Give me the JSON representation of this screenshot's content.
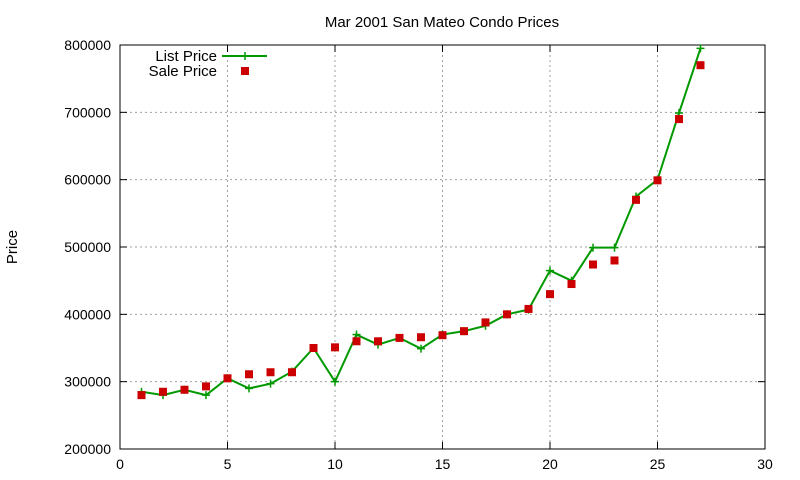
{
  "chart_data": {
    "type": "line",
    "title": "Mar 2001 San Mateo Condo Prices",
    "xlabel": "",
    "ylabel": "Price",
    "xlim": [
      0,
      30
    ],
    "ylim": [
      200000,
      800000
    ],
    "xticks": [
      0,
      5,
      10,
      15,
      20,
      25,
      30
    ],
    "yticks": [
      200000,
      300000,
      400000,
      500000,
      600000,
      700000,
      800000
    ],
    "grid": true,
    "legend_position": "top-left",
    "series": [
      {
        "name": "List Price",
        "style": "line-plus",
        "color": "#009900",
        "x": [
          1,
          2,
          3,
          4,
          5,
          6,
          7,
          8,
          9,
          10,
          11,
          12,
          13,
          14,
          15,
          16,
          17,
          18,
          19,
          20,
          21,
          22,
          23,
          24,
          25,
          26,
          27
        ],
        "y": [
          285000,
          280000,
          288000,
          280000,
          305000,
          290000,
          297000,
          315000,
          350000,
          300000,
          370000,
          355000,
          365000,
          349000,
          370000,
          375000,
          383000,
          400000,
          407000,
          465000,
          450000,
          499000,
          499000,
          575000,
          600000,
          699000,
          795000
        ]
      },
      {
        "name": "Sale Price",
        "style": "square",
        "color": "#cc0000",
        "x": [
          1,
          2,
          3,
          4,
          5,
          6,
          7,
          8,
          9,
          10,
          11,
          12,
          13,
          14,
          15,
          16,
          17,
          18,
          19,
          20,
          21,
          22,
          23,
          24,
          25,
          26,
          27
        ],
        "y": [
          280000,
          285000,
          288000,
          293000,
          305000,
          311000,
          314000,
          314000,
          350000,
          351000,
          360000,
          360000,
          365000,
          366000,
          369000,
          375000,
          388000,
          400000,
          408000,
          430000,
          445000,
          474000,
          480000,
          570000,
          599000,
          690000,
          770000
        ]
      }
    ]
  }
}
